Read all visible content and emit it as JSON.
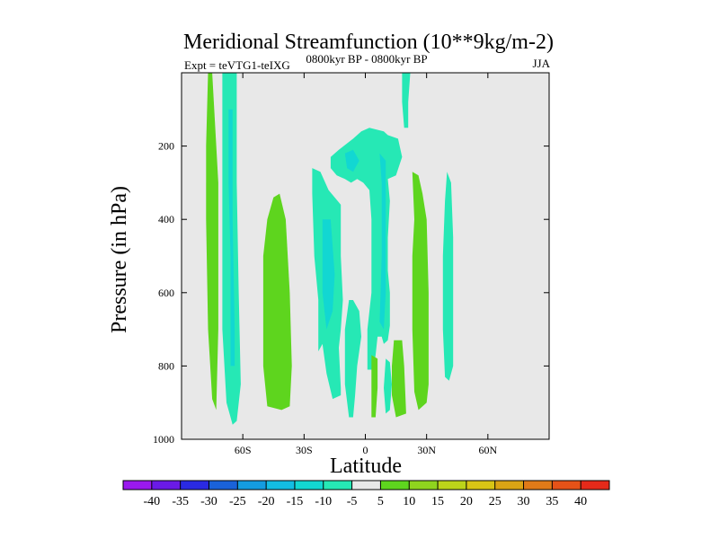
{
  "chart_data": {
    "type": "contour",
    "title": "Meridional Streamfunction (10**9kg/m-2)",
    "left_label": "Expt = teVTG1-teIXG",
    "center_label": "0800kyr BP - 0800kyr BP",
    "right_label": "JJA",
    "xlabel": "Latitude",
    "ylabel": "Pressure (in hPa)",
    "xlim": [
      -90,
      90
    ],
    "ylim": [
      1000,
      0
    ],
    "x_ticks": [
      {
        "value": -60,
        "label": "60S"
      },
      {
        "value": -30,
        "label": "30S"
      },
      {
        "value": 0,
        "label": "0"
      },
      {
        "value": 30,
        "label": "30N"
      },
      {
        "value": 60,
        "label": "60N"
      }
    ],
    "y_ticks": [
      {
        "value": 200,
        "label": "200"
      },
      {
        "value": 400,
        "label": "400"
      },
      {
        "value": 600,
        "label": "600"
      },
      {
        "value": 800,
        "label": "800"
      },
      {
        "value": 1000,
        "label": "1000"
      }
    ],
    "background_color": "#e8e8e8",
    "colorbar": {
      "levels": [
        "-40",
        "-35",
        "-30",
        "-25",
        "-20",
        "-15",
        "-10",
        "-5",
        "5",
        "10",
        "15",
        "20",
        "25",
        "30",
        "35",
        "40"
      ],
      "colors": [
        "#9a19ee",
        "#6a1ae6",
        "#2a2ae2",
        "#1a62d9",
        "#149ce0",
        "#13bde3",
        "#12d7d2",
        "#26e8b5",
        "#e8e8e8",
        "#5ed51e",
        "#8fd41e",
        "#bcd41a",
        "#d8c515",
        "#dba414",
        "#e07a18",
        "#e55218",
        "#e52a1a"
      ]
    },
    "regions": [
      {
        "bin": 9,
        "points": [
          [
            -77,
            0
          ],
          [
            -75,
            0
          ],
          [
            -72,
            300
          ],
          [
            -72,
            700
          ],
          [
            -73,
            920
          ],
          [
            -75,
            890
          ],
          [
            -77,
            700
          ],
          [
            -78,
            400
          ],
          [
            -78,
            200
          ]
        ]
      },
      {
        "bin": 7,
        "points": [
          [
            -70,
            0
          ],
          [
            -63,
            0
          ],
          [
            -63,
            300
          ],
          [
            -62,
            600
          ],
          [
            -61,
            850
          ],
          [
            -63,
            950
          ],
          [
            -65,
            960
          ],
          [
            -68,
            900
          ],
          [
            -70,
            700
          ],
          [
            -70,
            300
          ]
        ]
      },
      {
        "bin": 6,
        "points": [
          [
            -67,
            100
          ],
          [
            -65,
            100
          ],
          [
            -65,
            400
          ],
          [
            -64,
            700
          ],
          [
            -64,
            800
          ],
          [
            -66,
            800
          ],
          [
            -66,
            500
          ],
          [
            -67,
            300
          ]
        ]
      },
      {
        "bin": 9,
        "points": [
          [
            -45,
            340
          ],
          [
            -42,
            330
          ],
          [
            -39,
            400
          ],
          [
            -37,
            600
          ],
          [
            -36,
            800
          ],
          [
            -37,
            910
          ],
          [
            -41,
            920
          ],
          [
            -48,
            910
          ],
          [
            -50,
            800
          ],
          [
            -50,
            500
          ],
          [
            -48,
            400
          ]
        ]
      },
      {
        "bin": 7,
        "points": [
          [
            -26,
            260
          ],
          [
            -22,
            270
          ],
          [
            -18,
            320
          ],
          [
            -12,
            360
          ],
          [
            -12,
            500
          ],
          [
            -11,
            620
          ],
          [
            -12,
            700
          ],
          [
            -13,
            750
          ],
          [
            -12,
            860
          ],
          [
            -12,
            880
          ],
          [
            -16,
            890
          ],
          [
            -19,
            820
          ],
          [
            -21,
            740
          ],
          [
            -23,
            760
          ],
          [
            -23,
            620
          ],
          [
            -25,
            500
          ],
          [
            -26,
            330
          ]
        ]
      },
      {
        "bin": 6,
        "points": [
          [
            -21,
            400
          ],
          [
            -17,
            400
          ],
          [
            -15,
            550
          ],
          [
            -16,
            650
          ],
          [
            -19,
            700
          ],
          [
            -21,
            600
          ]
        ]
      },
      {
        "bin": 7,
        "points": [
          [
            -17,
            230
          ],
          [
            -13,
            210
          ],
          [
            -6,
            180
          ],
          [
            -2,
            160
          ],
          [
            2,
            150
          ],
          [
            9,
            160
          ],
          [
            11,
            170
          ],
          [
            16,
            180
          ],
          [
            18,
            230
          ],
          [
            15,
            280
          ],
          [
            11,
            290
          ],
          [
            12,
            350
          ],
          [
            11,
            450
          ],
          [
            11,
            540
          ],
          [
            12,
            600
          ],
          [
            12,
            690
          ],
          [
            11,
            730
          ],
          [
            9,
            740
          ],
          [
            8,
            720
          ],
          [
            6,
            720
          ],
          [
            5,
            770
          ],
          [
            4,
            810
          ],
          [
            1,
            810
          ],
          [
            1,
            700
          ],
          [
            3,
            600
          ],
          [
            3,
            500
          ],
          [
            3,
            400
          ],
          [
            2,
            320
          ],
          [
            -1,
            300
          ],
          [
            -4,
            290
          ],
          [
            -7,
            300
          ],
          [
            -10,
            290
          ],
          [
            -14,
            280
          ],
          [
            -17,
            260
          ]
        ]
      },
      {
        "bin": 6,
        "points": [
          [
            -10,
            220
          ],
          [
            -6,
            210
          ],
          [
            -3,
            240
          ],
          [
            -6,
            270
          ],
          [
            -9,
            260
          ]
        ]
      },
      {
        "bin": 6,
        "points": [
          [
            7,
            220
          ],
          [
            10,
            240
          ],
          [
            10,
            400
          ],
          [
            10,
            600
          ],
          [
            9,
            700
          ],
          [
            7,
            680
          ],
          [
            8,
            500
          ],
          [
            8,
            300
          ]
        ]
      },
      {
        "bin": 7,
        "points": [
          [
            -8,
            620
          ],
          [
            -6,
            620
          ],
          [
            -3,
            650
          ],
          [
            -2,
            720
          ],
          [
            -4,
            800
          ],
          [
            -5,
            880
          ],
          [
            -6,
            940
          ],
          [
            -8,
            940
          ],
          [
            -10,
            850
          ],
          [
            -10,
            700
          ]
        ]
      },
      {
        "bin": 9,
        "points": [
          [
            3,
            770
          ],
          [
            6,
            780
          ],
          [
            6,
            860
          ],
          [
            5,
            940
          ],
          [
            3,
            940
          ],
          [
            3,
            850
          ]
        ]
      },
      {
        "bin": 7,
        "points": [
          [
            10,
            780
          ],
          [
            12,
            790
          ],
          [
            13,
            850
          ],
          [
            12,
            920
          ],
          [
            10,
            930
          ],
          [
            9,
            860
          ]
        ]
      },
      {
        "bin": 9,
        "points": [
          [
            14,
            730
          ],
          [
            18,
            730
          ],
          [
            19,
            800
          ],
          [
            20,
            930
          ],
          [
            15,
            940
          ],
          [
            13,
            880
          ],
          [
            13,
            800
          ]
        ]
      },
      {
        "bin": 9,
        "points": [
          [
            23,
            270
          ],
          [
            26,
            280
          ],
          [
            28,
            330
          ],
          [
            30,
            400
          ],
          [
            31,
            600
          ],
          [
            31,
            850
          ],
          [
            30,
            900
          ],
          [
            26,
            920
          ],
          [
            24,
            870
          ],
          [
            23,
            700
          ],
          [
            23,
            500
          ],
          [
            24,
            400
          ]
        ]
      },
      {
        "bin": 7,
        "points": [
          [
            40,
            270
          ],
          [
            42,
            300
          ],
          [
            43,
            450
          ],
          [
            43,
            650
          ],
          [
            43,
            800
          ],
          [
            41,
            840
          ],
          [
            39,
            830
          ],
          [
            38,
            700
          ],
          [
            38,
            500
          ],
          [
            39,
            350
          ]
        ]
      },
      {
        "bin": 7,
        "points": [
          [
            18,
            0
          ],
          [
            22,
            0
          ],
          [
            21,
            80
          ],
          [
            21,
            150
          ],
          [
            19,
            150
          ],
          [
            18,
            80
          ]
        ]
      }
    ]
  }
}
